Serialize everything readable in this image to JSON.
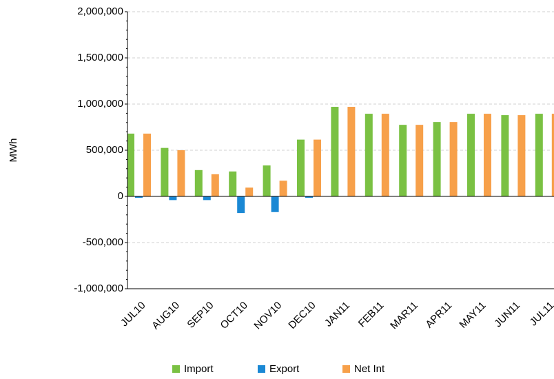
{
  "chart_data": {
    "type": "bar",
    "y_label": "MWh",
    "categories": [
      "JUL10",
      "AUG10",
      "SEP10",
      "OCT10",
      "NOV10",
      "DEC10",
      "JAN11",
      "FEB11",
      "MAR11",
      "APR11",
      "MAY11",
      "JUN11",
      "JUL11"
    ],
    "series": [
      {
        "name": "Import",
        "color": "#7ac143",
        "values": [
          680000,
          525000,
          285000,
          270000,
          335000,
          615000,
          970000,
          895000,
          775000,
          805000,
          895000,
          880000,
          895000
        ]
      },
      {
        "name": "Export",
        "color": "#1a88d4",
        "values": [
          -15000,
          -40000,
          -40000,
          -180000,
          -170000,
          -15000,
          0,
          0,
          0,
          0,
          0,
          0,
          0
        ]
      },
      {
        "name": "Net Int",
        "color": "#f7a04a",
        "values": [
          680000,
          500000,
          240000,
          95000,
          170000,
          615000,
          970000,
          895000,
          775000,
          805000,
          895000,
          880000,
          895000
        ]
      }
    ],
    "ylim": [
      -1000000,
      2000000
    ],
    "yticks": [
      {
        "value": -1000000,
        "label": "-1,000,000"
      },
      {
        "value": -500000,
        "label": "-500,000"
      },
      0,
      {
        "value": 500000,
        "label": "500,000"
      },
      {
        "value": 1000000,
        "label": "1,000,000"
      },
      {
        "value": 1500000,
        "label": "1,500,000"
      },
      {
        "value": 2000000,
        "label": "2,000,000"
      }
    ],
    "grid": true
  }
}
